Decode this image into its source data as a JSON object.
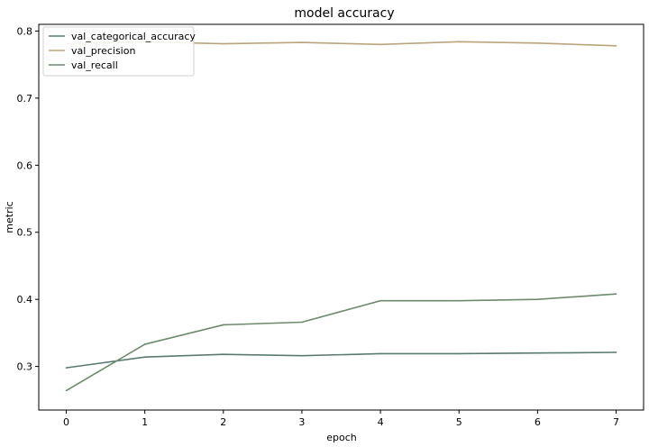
{
  "chart_data": {
    "type": "line",
    "title": "model accuracy",
    "xlabel": "epoch",
    "ylabel": "metric",
    "x": [
      0,
      1,
      2,
      3,
      4,
      5,
      6,
      7
    ],
    "xlim": [
      -0.35,
      7.35
    ],
    "ylim": [
      0.235,
      0.81
    ],
    "xticks": [
      0,
      1,
      2,
      3,
      4,
      5,
      6,
      7
    ],
    "yticks": [
      0.3,
      0.4,
      0.5,
      0.6,
      0.7,
      0.8
    ],
    "grid": false,
    "legend_position": "top-left",
    "series": [
      {
        "name": "val_categorical_accuracy",
        "color": "#5b7a72",
        "values": [
          0.298,
          0.314,
          0.318,
          0.316,
          0.319,
          0.319,
          0.32,
          0.321
        ]
      },
      {
        "name": "val_precision",
        "color": "#b8a57c",
        "values": [
          0.781,
          0.784,
          0.781,
          0.783,
          0.78,
          0.784,
          0.782,
          0.778
        ]
      },
      {
        "name": "val_recall",
        "color": "#6e8a6e",
        "values": [
          0.264,
          0.333,
          0.362,
          0.366,
          0.398,
          0.398,
          0.4,
          0.408
        ]
      }
    ]
  }
}
